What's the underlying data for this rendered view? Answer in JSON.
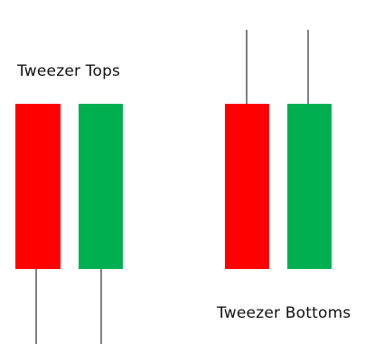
{
  "diagram": {
    "tops": {
      "label": "Tweezer Tops",
      "candles": [
        {
          "name": "bearish-candle",
          "color": "#ff0000",
          "wick": "lower"
        },
        {
          "name": "bullish-candle",
          "color": "#00b050",
          "wick": "lower"
        }
      ]
    },
    "bottoms": {
      "label": "Tweezer Bottoms",
      "candles": [
        {
          "name": "bearish-candle",
          "color": "#ff0000",
          "wick": "upper"
        },
        {
          "name": "bullish-candle",
          "color": "#00b050",
          "wick": "upper"
        }
      ]
    }
  }
}
